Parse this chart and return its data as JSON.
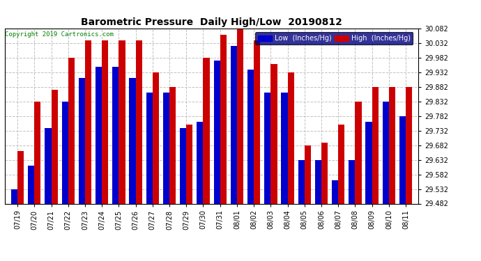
{
  "title": "Barometric Pressure  Daily High/Low  20190812",
  "copyright": "Copyright 2019 Cartronics.com",
  "legend_low": "Low  (Inches/Hg)",
  "legend_high": "High  (Inches/Hg)",
  "low_color": "#0000cc",
  "high_color": "#cc0000",
  "background_color": "#ffffff",
  "grid_color": "#bbbbbb",
  "ylim_min": 29.482,
  "ylim_max": 30.082,
  "yticks": [
    29.482,
    29.532,
    29.582,
    29.632,
    29.682,
    29.732,
    29.782,
    29.832,
    29.882,
    29.932,
    29.982,
    30.032,
    30.082
  ],
  "dates": [
    "07/19",
    "07/20",
    "07/21",
    "07/22",
    "07/23",
    "07/24",
    "07/25",
    "07/26",
    "07/27",
    "07/28",
    "07/29",
    "07/30",
    "07/31",
    "08/01",
    "08/02",
    "08/03",
    "08/04",
    "08/05",
    "08/06",
    "08/07",
    "08/08",
    "08/09",
    "08/10",
    "08/11"
  ],
  "low_values": [
    29.532,
    29.612,
    29.742,
    29.832,
    29.912,
    29.952,
    29.952,
    29.912,
    29.862,
    29.862,
    29.742,
    29.762,
    29.972,
    30.022,
    29.942,
    29.862,
    29.862,
    29.632,
    29.632,
    29.562,
    29.632,
    29.762,
    29.832,
    29.782
  ],
  "high_values": [
    29.662,
    29.832,
    29.872,
    29.982,
    30.042,
    30.042,
    30.042,
    30.042,
    29.932,
    29.882,
    29.752,
    29.982,
    30.062,
    30.082,
    30.042,
    29.962,
    29.932,
    29.682,
    29.692,
    29.752,
    29.832,
    29.882,
    29.882,
    29.882
  ]
}
